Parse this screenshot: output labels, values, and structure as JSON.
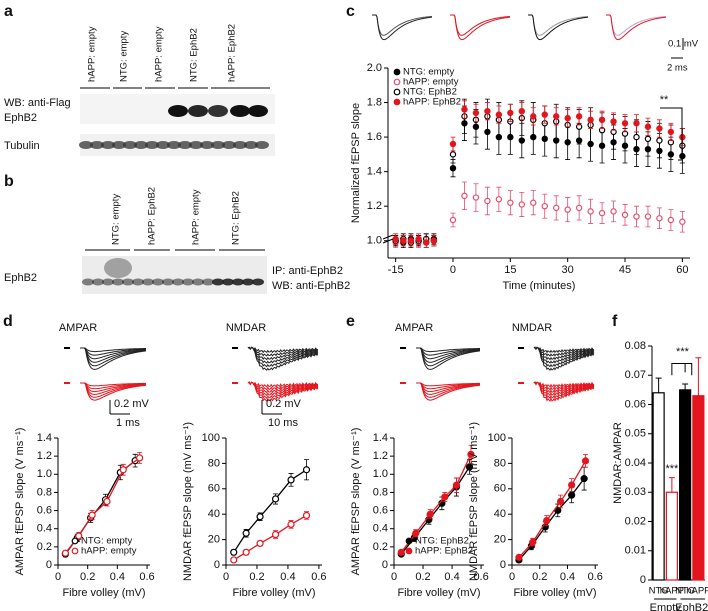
{
  "blot_a": {
    "panel": "a",
    "lanes": [
      "hAPP: empty",
      "NTG: empty",
      "hAPP: empty",
      "NTG: EphB2",
      "hAPP: EphB2"
    ],
    "rows": [
      "WB: anti-Flag",
      "EphB2",
      "Tubulin"
    ]
  },
  "blot_b": {
    "panel": "b",
    "lanes": [
      "NTG: empty",
      "hAPP: EphB2",
      "hAPP: empty",
      "NTG: EphB2"
    ],
    "rows": [
      "EphB2"
    ],
    "right_labels": [
      "IP: anti-EphB2",
      "WB: anti-EphB2"
    ]
  },
  "chart_data": [
    {
      "panel": "c",
      "type": "scatter",
      "xlabel": "Time (minutes)",
      "ylabel": "Normalized fEPSP slope",
      "xlim": [
        -17,
        62
      ],
      "xticks": [
        -15,
        0,
        15,
        30,
        45,
        60
      ],
      "ylim": [
        0.9,
        2.0
      ],
      "yticks": [
        {
          "value": 1.0,
          "label": "1.0"
        },
        {
          "value": 1.2,
          "label": "1.2"
        },
        {
          "value": 1.4,
          "label": "1.4"
        },
        {
          "value": 1.6,
          "label": "1.6"
        },
        {
          "value": 1.8,
          "label": "1.8"
        },
        {
          "value": 2.0,
          "label": "2.0"
        }
      ],
      "legend": "upper left",
      "annotation": "**",
      "scale_labels": [
        "0.1 mV",
        "2 ms"
      ],
      "x": [
        -15,
        -13,
        -11,
        -9,
        -7,
        -5,
        0,
        3,
        6,
        9,
        12,
        15,
        18,
        21,
        24,
        27,
        30,
        33,
        36,
        39,
        42,
        45,
        48,
        51,
        54,
        57,
        60
      ],
      "series": [
        {
          "name": "NTG: empty",
          "color": "#000000",
          "marker": "filled",
          "values": [
            1.0,
            0.99,
            1.01,
            1.0,
            0.99,
            1.01,
            1.42,
            1.68,
            1.66,
            1.63,
            1.6,
            1.6,
            1.58,
            1.6,
            1.59,
            1.58,
            1.57,
            1.58,
            1.56,
            1.55,
            1.57,
            1.55,
            1.53,
            1.53,
            1.52,
            1.5,
            1.49
          ],
          "errors": [
            0.03,
            0.03,
            0.03,
            0.03,
            0.03,
            0.03,
            0.05,
            0.1,
            0.1,
            0.1,
            0.1,
            0.1,
            0.1,
            0.1,
            0.1,
            0.1,
            0.1,
            0.1,
            0.1,
            0.1,
            0.1,
            0.1,
            0.1,
            0.1,
            0.1,
            0.1,
            0.1
          ]
        },
        {
          "name": "hAPP: empty",
          "color": "#e54b6d",
          "marker": "open",
          "values": [
            0.99,
            1.0,
            1.0,
            0.99,
            1.01,
            1.0,
            1.12,
            1.26,
            1.25,
            1.23,
            1.24,
            1.22,
            1.21,
            1.22,
            1.2,
            1.19,
            1.18,
            1.19,
            1.17,
            1.16,
            1.17,
            1.15,
            1.14,
            1.14,
            1.13,
            1.12,
            1.11
          ],
          "errors": [
            0.03,
            0.03,
            0.03,
            0.03,
            0.03,
            0.03,
            0.04,
            0.08,
            0.08,
            0.08,
            0.07,
            0.07,
            0.07,
            0.07,
            0.07,
            0.07,
            0.07,
            0.07,
            0.07,
            0.06,
            0.06,
            0.06,
            0.06,
            0.06,
            0.06,
            0.06,
            0.06
          ]
        },
        {
          "name": "NTG: EphB2",
          "color": "#000000",
          "marker": "open",
          "values": [
            1.0,
            1.01,
            0.99,
            1.0,
            1.01,
            1.0,
            1.5,
            1.72,
            1.7,
            1.72,
            1.7,
            1.69,
            1.71,
            1.7,
            1.68,
            1.69,
            1.67,
            1.66,
            1.67,
            1.64,
            1.63,
            1.62,
            1.6,
            1.59,
            1.58,
            1.57,
            1.55
          ],
          "errors": [
            0.03,
            0.03,
            0.03,
            0.03,
            0.03,
            0.03,
            0.05,
            0.1,
            0.1,
            0.1,
            0.1,
            0.1,
            0.1,
            0.1,
            0.1,
            0.1,
            0.1,
            0.1,
            0.1,
            0.1,
            0.1,
            0.1,
            0.1,
            0.1,
            0.1,
            0.1,
            0.1
          ]
        },
        {
          "name": "hAPP: EphB2",
          "color": "#e3161f",
          "marker": "filled",
          "values": [
            1.01,
            1.0,
            1.0,
            1.01,
            0.99,
            1.0,
            1.56,
            1.76,
            1.74,
            1.75,
            1.73,
            1.74,
            1.75,
            1.72,
            1.73,
            1.72,
            1.71,
            1.72,
            1.7,
            1.7,
            1.69,
            1.68,
            1.68,
            1.66,
            1.65,
            1.63,
            1.6
          ],
          "errors": [
            0.03,
            0.03,
            0.03,
            0.03,
            0.03,
            0.03,
            0.04,
            0.05,
            0.05,
            0.05,
            0.05,
            0.05,
            0.05,
            0.05,
            0.05,
            0.05,
            0.05,
            0.05,
            0.05,
            0.05,
            0.05,
            0.05,
            0.05,
            0.05,
            0.05,
            0.05,
            0.05
          ]
        }
      ]
    },
    {
      "panel": "d",
      "type": "line",
      "title": "AMPAR",
      "scale_labels": [
        "0.2 mV",
        "1 ms"
      ],
      "xlabel": "Fibre volley (mV)",
      "ylabel": "AMPAR fEPSP slope (V ms⁻¹)",
      "xlim": [
        0,
        0.62
      ],
      "xticks": [
        0,
        0.2,
        0.4,
        0.6
      ],
      "ylim": [
        0,
        1.4
      ],
      "yticks": [
        0,
        0.2,
        0.4,
        0.6,
        0.8,
        {
          "value": 1.0,
          "label": "1.0"
        },
        1.2,
        1.4
      ],
      "legend": "lower right",
      "series": [
        {
          "name": "NTG: empty",
          "color": "#000000",
          "marker": "open",
          "x": [
            0.05,
            0.13,
            0.22,
            0.32,
            0.42,
            0.52
          ],
          "values": [
            0.12,
            0.3,
            0.52,
            0.72,
            1.02,
            1.15
          ],
          "errors": [
            0.03,
            0.04,
            0.05,
            0.06,
            0.08,
            0.07
          ]
        },
        {
          "name": "hAPP: empty",
          "color": "#e3161f",
          "marker": "open",
          "x": [
            0.05,
            0.14,
            0.23,
            0.33,
            0.44,
            0.55
          ],
          "values": [
            0.13,
            0.32,
            0.55,
            0.7,
            1.05,
            1.18
          ],
          "errors": [
            0.02,
            0.04,
            0.05,
            0.05,
            0.06,
            0.06
          ]
        }
      ]
    },
    {
      "panel": "",
      "type": "line",
      "title": "NMDAR",
      "scale_labels": [
        "0.2 mV",
        "10 ms"
      ],
      "xlabel": "Fibre volley (mV)",
      "ylabel": "NMDAR fEPSP slope (mV ms⁻¹)",
      "xlim": [
        0,
        0.62
      ],
      "xticks": [
        0,
        0.2,
        0.4,
        0.6
      ],
      "ylim": [
        0,
        100
      ],
      "yticks": [
        0,
        20,
        40,
        60,
        80,
        100
      ],
      "series": [
        {
          "name": "NTG: empty",
          "color": "#000000",
          "marker": "open",
          "x": [
            0.05,
            0.13,
            0.22,
            0.32,
            0.42,
            0.52
          ],
          "values": [
            10,
            25,
            38,
            52,
            67,
            75
          ],
          "errors": [
            2,
            3,
            3,
            4,
            5,
            8
          ]
        },
        {
          "name": "hAPP: empty",
          "color": "#e3161f",
          "marker": "open",
          "x": [
            0.05,
            0.13,
            0.22,
            0.32,
            0.42,
            0.52
          ],
          "values": [
            4,
            10,
            17,
            24,
            32,
            39
          ],
          "errors": [
            1,
            2,
            2,
            3,
            3,
            3
          ]
        }
      ]
    },
    {
      "panel": "e",
      "type": "line",
      "title": "AMPAR",
      "xlabel": "Fibre volley (mV)",
      "ylabel": "AMPAR fEPSP slope (V ms⁻¹)",
      "xlim": [
        0,
        0.62
      ],
      "xticks": [
        0,
        0.2,
        0.4,
        0.6
      ],
      "ylim": [
        0,
        1.4
      ],
      "yticks": [
        0,
        0.2,
        0.4,
        0.6,
        0.8,
        {
          "value": 1.0,
          "label": "1.0"
        },
        1.2,
        1.4
      ],
      "legend": "lower right",
      "series": [
        {
          "name": "NTG: EphB2",
          "color": "#000000",
          "marker": "filled",
          "x": [
            0.05,
            0.14,
            0.24,
            0.33,
            0.43,
            0.52
          ],
          "values": [
            0.12,
            0.3,
            0.5,
            0.68,
            0.86,
            1.08
          ],
          "errors": [
            0.02,
            0.04,
            0.05,
            0.07,
            0.1,
            0.08
          ]
        },
        {
          "name": "hAPP: EphB2",
          "color": "#e3161f",
          "marker": "filled",
          "x": [
            0.05,
            0.15,
            0.25,
            0.35,
            0.43,
            0.53
          ],
          "values": [
            0.14,
            0.35,
            0.56,
            0.75,
            0.88,
            1.22
          ],
          "errors": [
            0.02,
            0.04,
            0.05,
            0.05,
            0.08,
            0.1
          ]
        }
      ]
    },
    {
      "panel": "",
      "type": "line",
      "title": "NMDAR",
      "xlabel": "Fibre volley (mV)",
      "ylabel": "NMDAR fEPSP slope (mV ms⁻¹)",
      "xlim": [
        0,
        0.62
      ],
      "xticks": [
        0,
        0.2,
        0.4,
        0.6
      ],
      "ylim": [
        0,
        100
      ],
      "yticks": [
        0,
        20,
        40,
        60,
        80,
        100
      ],
      "series": [
        {
          "name": "NTG: EphB2",
          "color": "#000000",
          "marker": "filled",
          "x": [
            0.05,
            0.14,
            0.24,
            0.33,
            0.43,
            0.52
          ],
          "values": [
            4,
            15,
            30,
            43,
            55,
            68
          ],
          "errors": [
            1,
            3,
            4,
            5,
            6,
            9
          ]
        },
        {
          "name": "hAPP: EphB2",
          "color": "#e3161f",
          "marker": "filled",
          "x": [
            0.05,
            0.15,
            0.25,
            0.35,
            0.43,
            0.53
          ],
          "values": [
            6,
            18,
            35,
            50,
            63,
            82
          ],
          "errors": [
            1,
            3,
            4,
            5,
            5,
            5
          ]
        }
      ]
    },
    {
      "panel": "f",
      "type": "bar",
      "ylabel": "NMDAR:AMPAR",
      "ylim": [
        0,
        0.08
      ],
      "yticks": [
        0,
        0.01,
        0.02,
        0.03,
        0.04,
        0.05,
        0.06,
        0.07,
        0.08
      ],
      "categories": [
        "NTG",
        "hAPP",
        "NTG",
        "hAPP"
      ],
      "groups": [
        "Empty",
        "EphB2"
      ],
      "values": [
        0.064,
        0.03,
        0.065,
        0.063
      ],
      "errors": [
        0.005,
        0.005,
        0.002,
        0.013
      ],
      "colors": [
        "#000000",
        "#e3161f",
        "#000000",
        "#e3161f"
      ],
      "fills": [
        "open",
        "open",
        "filled",
        "filled"
      ],
      "annotations": [
        "***",
        "***"
      ]
    }
  ]
}
